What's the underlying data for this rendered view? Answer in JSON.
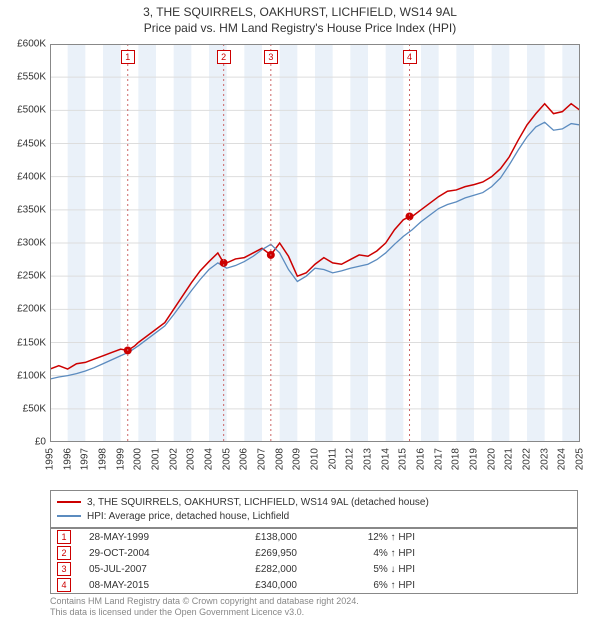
{
  "title": {
    "line1": "3, THE SQUIRRELS, OAKHURST, LICHFIELD, WS14 9AL",
    "line2": "Price paid vs. HM Land Registry's House Price Index (HPI)",
    "fontsize": 12,
    "color": "#333333"
  },
  "chart": {
    "type": "line",
    "background_color": "#ffffff",
    "grid_color": "#dddddd",
    "axis_color": "#888888",
    "band_color": "#eaf1f9",
    "ylim": [
      0,
      600000
    ],
    "ytick_step": 50000,
    "yticks": [
      "£0",
      "£50K",
      "£100K",
      "£150K",
      "£200K",
      "£250K",
      "£300K",
      "£350K",
      "£400K",
      "£450K",
      "£500K",
      "£550K",
      "£600K"
    ],
    "xlim": [
      1995,
      2025
    ],
    "xticks": [
      1995,
      1996,
      1997,
      1998,
      1999,
      2000,
      2001,
      2002,
      2003,
      2004,
      2005,
      2006,
      2007,
      2008,
      2009,
      2010,
      2011,
      2012,
      2013,
      2014,
      2015,
      2016,
      2017,
      2018,
      2019,
      2020,
      2021,
      2022,
      2023,
      2024,
      2025
    ],
    "series": [
      {
        "name": "property",
        "label": "3, THE SQUIRRELS, OAKHURST, LICHFIELD, WS14 9AL (detached house)",
        "color": "#cc0000",
        "line_width": 1.5,
        "data": [
          [
            1995,
            110000
          ],
          [
            1995.5,
            115000
          ],
          [
            1996,
            110000
          ],
          [
            1996.5,
            118000
          ],
          [
            1997,
            120000
          ],
          [
            1997.5,
            125000
          ],
          [
            1998,
            130000
          ],
          [
            1998.5,
            135000
          ],
          [
            1999,
            140000
          ],
          [
            1999.4,
            138000
          ],
          [
            1999.8,
            145000
          ],
          [
            2000,
            150000
          ],
          [
            2000.5,
            160000
          ],
          [
            2001,
            170000
          ],
          [
            2001.5,
            180000
          ],
          [
            2002,
            200000
          ],
          [
            2002.5,
            220000
          ],
          [
            2003,
            240000
          ],
          [
            2003.5,
            258000
          ],
          [
            2004,
            272000
          ],
          [
            2004.5,
            285000
          ],
          [
            2004.83,
            269950
          ],
          [
            2005,
            270000
          ],
          [
            2005.5,
            276000
          ],
          [
            2006,
            278000
          ],
          [
            2006.5,
            285000
          ],
          [
            2007,
            292000
          ],
          [
            2007.5,
            282000
          ],
          [
            2008,
            300000
          ],
          [
            2008.5,
            280000
          ],
          [
            2009,
            250000
          ],
          [
            2009.5,
            255000
          ],
          [
            2010,
            268000
          ],
          [
            2010.5,
            278000
          ],
          [
            2011,
            270000
          ],
          [
            2011.5,
            268000
          ],
          [
            2012,
            275000
          ],
          [
            2012.5,
            282000
          ],
          [
            2013,
            280000
          ],
          [
            2013.5,
            288000
          ],
          [
            2014,
            300000
          ],
          [
            2014.5,
            320000
          ],
          [
            2015,
            335000
          ],
          [
            2015.35,
            340000
          ],
          [
            2015.5,
            340000
          ],
          [
            2016,
            350000
          ],
          [
            2016.5,
            360000
          ],
          [
            2017,
            370000
          ],
          [
            2017.5,
            378000
          ],
          [
            2018,
            380000
          ],
          [
            2018.5,
            385000
          ],
          [
            2019,
            388000
          ],
          [
            2019.5,
            392000
          ],
          [
            2020,
            400000
          ],
          [
            2020.5,
            412000
          ],
          [
            2021,
            430000
          ],
          [
            2021.5,
            455000
          ],
          [
            2022,
            478000
          ],
          [
            2022.5,
            495000
          ],
          [
            2023,
            510000
          ],
          [
            2023.5,
            495000
          ],
          [
            2024,
            498000
          ],
          [
            2024.5,
            510000
          ],
          [
            2025,
            500000
          ]
        ]
      },
      {
        "name": "hpi",
        "label": "HPI: Average price, detached house, Lichfield",
        "color": "#5b8bbf",
        "line_width": 1.3,
        "data": [
          [
            1995,
            95000
          ],
          [
            1995.5,
            98000
          ],
          [
            1996,
            100000
          ],
          [
            1996.5,
            103000
          ],
          [
            1997,
            107000
          ],
          [
            1997.5,
            112000
          ],
          [
            1998,
            118000
          ],
          [
            1998.5,
            124000
          ],
          [
            1999,
            130000
          ],
          [
            1999.5,
            136000
          ],
          [
            2000,
            145000
          ],
          [
            2000.5,
            155000
          ],
          [
            2001,
            165000
          ],
          [
            2001.5,
            175000
          ],
          [
            2002,
            192000
          ],
          [
            2002.5,
            210000
          ],
          [
            2003,
            228000
          ],
          [
            2003.5,
            245000
          ],
          [
            2004,
            260000
          ],
          [
            2004.5,
            270000
          ],
          [
            2005,
            262000
          ],
          [
            2005.5,
            266000
          ],
          [
            2006,
            272000
          ],
          [
            2006.5,
            280000
          ],
          [
            2007,
            290000
          ],
          [
            2007.5,
            298000
          ],
          [
            2008,
            285000
          ],
          [
            2008.5,
            260000
          ],
          [
            2009,
            242000
          ],
          [
            2009.5,
            250000
          ],
          [
            2010,
            262000
          ],
          [
            2010.5,
            260000
          ],
          [
            2011,
            255000
          ],
          [
            2011.5,
            258000
          ],
          [
            2012,
            262000
          ],
          [
            2012.5,
            265000
          ],
          [
            2013,
            268000
          ],
          [
            2013.5,
            275000
          ],
          [
            2014,
            285000
          ],
          [
            2014.5,
            298000
          ],
          [
            2015,
            310000
          ],
          [
            2015.5,
            320000
          ],
          [
            2016,
            332000
          ],
          [
            2016.5,
            342000
          ],
          [
            2017,
            352000
          ],
          [
            2017.5,
            358000
          ],
          [
            2018,
            362000
          ],
          [
            2018.5,
            368000
          ],
          [
            2019,
            372000
          ],
          [
            2019.5,
            376000
          ],
          [
            2020,
            385000
          ],
          [
            2020.5,
            398000
          ],
          [
            2021,
            418000
          ],
          [
            2021.5,
            440000
          ],
          [
            2022,
            460000
          ],
          [
            2022.5,
            475000
          ],
          [
            2023,
            482000
          ],
          [
            2023.5,
            470000
          ],
          [
            2024,
            472000
          ],
          [
            2024.5,
            480000
          ],
          [
            2025,
            478000
          ]
        ]
      }
    ],
    "event_markers": [
      {
        "id": "1",
        "x": 1999.4,
        "y": 138000
      },
      {
        "id": "2",
        "x": 2004.83,
        "y": 269950
      },
      {
        "id": "3",
        "x": 2007.5,
        "y": 282000
      },
      {
        "id": "4",
        "x": 2015.35,
        "y": 340000
      }
    ],
    "dot_color": "#cc0000",
    "dot_radius": 4
  },
  "legend": {
    "rows": [
      {
        "color": "#cc0000",
        "label": "3, THE SQUIRRELS, OAKHURST, LICHFIELD, WS14 9AL (detached house)"
      },
      {
        "color": "#5b8bbf",
        "label": "HPI: Average price, detached house, Lichfield"
      }
    ]
  },
  "events": {
    "rows": [
      {
        "id": "1",
        "date": "28-MAY-1999",
        "price": "£138,000",
        "delta": "12% ↑ HPI"
      },
      {
        "id": "2",
        "date": "29-OCT-2004",
        "price": "£269,950",
        "delta": "4% ↑ HPI"
      },
      {
        "id": "3",
        "date": "05-JUL-2007",
        "price": "£282,000",
        "delta": "5% ↓ HPI"
      },
      {
        "id": "4",
        "date": "08-MAY-2015",
        "price": "£340,000",
        "delta": "6% ↑ HPI"
      }
    ]
  },
  "footnote": {
    "line1": "Contains HM Land Registry data © Crown copyright and database right 2024.",
    "line2": "This data is licensed under the Open Government Licence v3.0."
  }
}
